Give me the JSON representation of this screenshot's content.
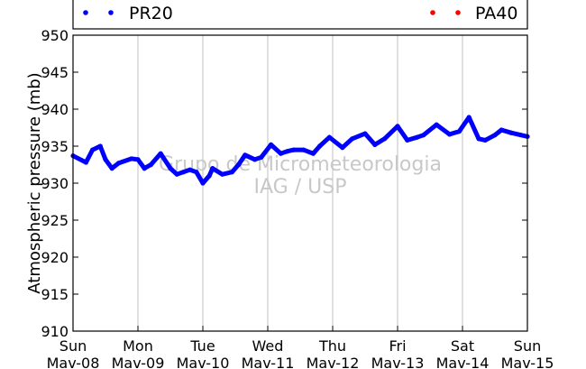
{
  "chart_data": {
    "type": "line",
    "title": "",
    "xlabel": "",
    "ylabel": "Atmospheric pressure (mb)",
    "ylim": [
      910,
      950
    ],
    "yticks": [
      910,
      915,
      920,
      925,
      930,
      935,
      940,
      945,
      950
    ],
    "x_unit": "days",
    "xlim": [
      0,
      7
    ],
    "xticks": [
      {
        "day": "Sun",
        "date": "Mav-08"
      },
      {
        "day": "Mon",
        "date": "Mav-09"
      },
      {
        "day": "Tue",
        "date": "Mav-10"
      },
      {
        "day": "Wed",
        "date": "Mav-11"
      },
      {
        "day": "Thu",
        "date": "Mav-12"
      },
      {
        "day": "Fri",
        "date": "Mav-13"
      },
      {
        "day": "Sat",
        "date": "Mav-14"
      },
      {
        "day": "Sun",
        "date": "Mav-15"
      }
    ],
    "grid": "vertical",
    "legend_placement": "top",
    "watermark": [
      "Grupo de Micrometeorologia",
      "IAG / USP"
    ],
    "series": [
      {
        "name": "PR20",
        "color": "#0000ff",
        "x": [
          0,
          0.2,
          0.3,
          0.42,
          0.5,
          0.6,
          0.7,
          0.9,
          1.0,
          1.1,
          1.2,
          1.35,
          1.5,
          1.6,
          1.7,
          1.8,
          1.9,
          2.0,
          2.1,
          2.15,
          2.3,
          2.45,
          2.55,
          2.65,
          2.8,
          2.9,
          3.05,
          3.2,
          3.3,
          3.4,
          3.55,
          3.7,
          3.8,
          3.95,
          4.15,
          4.3,
          4.5,
          4.65,
          4.8,
          5.0,
          5.15,
          5.3,
          5.4,
          5.6,
          5.8,
          5.95,
          6.1,
          6.25,
          6.35,
          6.5,
          6.6,
          6.75,
          6.9,
          7.0
        ],
        "y": [
          933.7,
          932.8,
          934.5,
          935.0,
          933.2,
          932.0,
          932.7,
          933.3,
          933.2,
          932.0,
          932.5,
          934.0,
          932.0,
          931.2,
          931.5,
          931.8,
          931.5,
          930.0,
          931.0,
          932.0,
          931.2,
          931.5,
          932.5,
          933.8,
          933.2,
          933.5,
          935.2,
          934.0,
          934.3,
          934.5,
          934.5,
          934.0,
          935.0,
          936.2,
          934.8,
          936.0,
          936.7,
          935.2,
          936.0,
          937.7,
          935.8,
          936.2,
          936.5,
          937.9,
          936.6,
          937.0,
          938.9,
          936.0,
          935.8,
          936.5,
          937.2,
          936.8,
          936.5,
          936.3
        ]
      },
      {
        "name": "PA40",
        "color": "#ff0000",
        "x": [],
        "y": []
      }
    ]
  }
}
